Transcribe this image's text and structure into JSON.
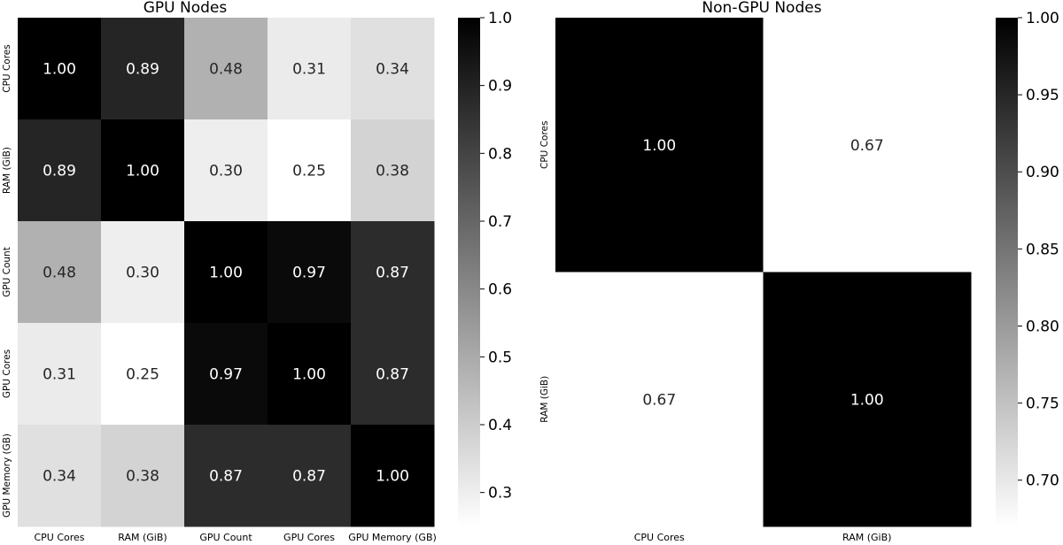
{
  "chart_data": [
    {
      "type": "heatmap",
      "title": "GPU Nodes",
      "row_labels": [
        "CPU Cores",
        "RAM (GiB)",
        "GPU Count",
        "GPU Cores",
        "GPU Memory (GB)"
      ],
      "col_labels": [
        "CPU Cores",
        "RAM (GiB)",
        "GPU Count",
        "GPU Cores",
        "GPU Memory (GB)"
      ],
      "values": [
        [
          1.0,
          0.89,
          0.48,
          0.31,
          0.34
        ],
        [
          0.89,
          1.0,
          0.3,
          0.25,
          0.38
        ],
        [
          0.48,
          0.3,
          1.0,
          0.97,
          0.87
        ],
        [
          0.31,
          0.25,
          0.97,
          1.0,
          0.87
        ],
        [
          0.34,
          0.38,
          0.87,
          0.87,
          1.0
        ]
      ],
      "value_labels": [
        [
          "1.00",
          "0.89",
          "0.48",
          "0.31",
          "0.34"
        ],
        [
          "0.89",
          "1.00",
          "0.30",
          "0.25",
          "0.38"
        ],
        [
          "0.48",
          "0.30",
          "1.00",
          "0.97",
          "0.87"
        ],
        [
          "0.31",
          "0.25",
          "0.97",
          "1.00",
          "0.87"
        ],
        [
          "0.34",
          "0.38",
          "0.87",
          "0.87",
          "1.00"
        ]
      ],
      "colorbar": {
        "range": [
          0.25,
          1.0
        ],
        "ticks": [
          0.3,
          0.4,
          0.5,
          0.6,
          0.7,
          0.8,
          0.9,
          1.0
        ],
        "tick_labels": [
          "0.3",
          "0.4",
          "0.5",
          "0.6",
          "0.7",
          "0.8",
          "0.9",
          "1.0"
        ],
        "low_color": "#ffffff",
        "high_color": "#000000"
      }
    },
    {
      "type": "heatmap",
      "title": "Non-GPU Nodes",
      "row_labels": [
        "CPU Cores",
        "RAM (GiB)"
      ],
      "col_labels": [
        "CPU Cores",
        "RAM (GiB)"
      ],
      "values": [
        [
          1.0,
          0.67
        ],
        [
          0.67,
          1.0
        ]
      ],
      "value_labels": [
        [
          "1.00",
          "0.67"
        ],
        [
          "0.67",
          "1.00"
        ]
      ],
      "colorbar": {
        "range": [
          0.67,
          1.0
        ],
        "ticks": [
          0.7,
          0.75,
          0.8,
          0.85,
          0.9,
          0.95,
          1.0
        ],
        "tick_labels": [
          "0.70",
          "0.75",
          "0.80",
          "0.85",
          "0.90",
          "0.95",
          "1.00"
        ],
        "low_color": "#ffffff",
        "high_color": "#000000"
      }
    }
  ]
}
